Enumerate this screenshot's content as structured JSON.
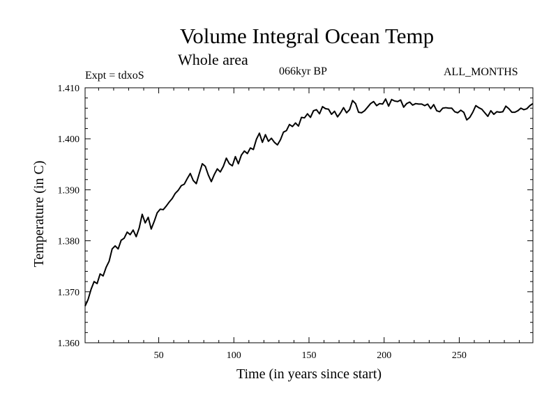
{
  "header": {
    "title": "Volume Integral Ocean Temp",
    "subtitle": "Whole area",
    "experiment": "Expt = tdxoS",
    "period": "066kyr BP",
    "months": "ALL_MONTHS"
  },
  "chart_data": {
    "type": "line",
    "title": "Volume Integral Ocean Temp",
    "subtitle": "Whole area",
    "xlabel": "Time (in years since start)",
    "ylabel": "Temperature (in C)",
    "xlim": [
      1,
      299
    ],
    "ylim": [
      1.36,
      1.41
    ],
    "xticks": [
      50,
      100,
      150,
      200,
      250
    ],
    "xtick_labels": [
      "50",
      "100",
      "150",
      "200",
      "250"
    ],
    "yticks": [
      1.36,
      1.37,
      1.38,
      1.39,
      1.4,
      1.41
    ],
    "ytick_labels": [
      "1.360",
      "1.370",
      "1.380",
      "1.390",
      "1.400",
      "1.410"
    ],
    "grid": false,
    "series": [
      {
        "color": "#000000",
        "x": [
          1,
          3,
          5,
          7,
          9,
          11,
          13,
          15,
          17,
          19,
          21,
          23,
          25,
          27,
          29,
          31,
          33,
          35,
          37,
          39,
          41,
          43,
          45,
          47,
          49,
          51,
          53,
          55,
          57,
          59,
          61,
          63,
          65,
          67,
          69,
          71,
          73,
          75,
          77,
          79,
          81,
          83,
          85,
          87,
          89,
          91,
          93,
          95,
          97,
          99,
          101,
          103,
          105,
          107,
          109,
          111,
          113,
          115,
          117,
          119,
          121,
          123,
          125,
          127,
          129,
          131,
          133,
          135,
          137,
          139,
          141,
          143,
          145,
          147,
          149,
          151,
          153,
          155,
          157,
          159,
          161,
          163,
          165,
          167,
          169,
          171,
          173,
          175,
          177,
          179,
          181,
          183,
          185,
          187,
          189,
          191,
          193,
          195,
          197,
          199,
          201,
          203,
          205,
          207,
          209,
          211,
          213,
          215,
          217,
          219,
          221,
          223,
          225,
          227,
          229,
          231,
          233,
          235,
          237,
          239,
          241,
          243,
          245,
          247,
          249,
          251,
          253,
          255,
          257,
          259,
          261,
          263,
          265,
          267,
          269,
          271,
          273,
          275,
          277,
          279,
          281,
          283,
          285,
          287,
          289,
          291,
          293,
          295,
          297,
          299
        ],
        "y": [
          1.3672,
          1.3685,
          1.3705,
          1.372,
          1.3716,
          1.3735,
          1.3731,
          1.3748,
          1.376,
          1.3784,
          1.379,
          1.3784,
          1.3801,
          1.3805,
          1.3817,
          1.3812,
          1.3821,
          1.3808,
          1.3825,
          1.3852,
          1.3835,
          1.3846,
          1.3823,
          1.3838,
          1.3855,
          1.3862,
          1.3861,
          1.3868,
          1.3876,
          1.3883,
          1.3893,
          1.3899,
          1.3908,
          1.3911,
          1.3922,
          1.3932,
          1.3918,
          1.3912,
          1.3932,
          1.3951,
          1.3946,
          1.3929,
          1.3916,
          1.393,
          1.3941,
          1.3935,
          1.3946,
          1.3962,
          1.3951,
          1.3947,
          1.3965,
          1.3951,
          1.3968,
          1.3976,
          1.3971,
          1.3982,
          1.3979,
          1.3999,
          1.4011,
          1.3993,
          1.4008,
          1.3995,
          1.4001,
          1.3993,
          1.3988,
          1.3998,
          1.4013,
          1.4016,
          1.4028,
          1.4024,
          1.4031,
          1.4025,
          1.4042,
          1.4041,
          1.4049,
          1.4042,
          1.4055,
          1.4057,
          1.4049,
          1.4063,
          1.4059,
          1.4058,
          1.4048,
          1.4054,
          1.4043,
          1.4051,
          1.4061,
          1.4051,
          1.4057,
          1.4075,
          1.4069,
          1.4052,
          1.4051,
          1.4055,
          1.4062,
          1.4069,
          1.4073,
          1.4065,
          1.4069,
          1.4068,
          1.4078,
          1.4064,
          1.4077,
          1.4074,
          1.4073,
          1.4076,
          1.4062,
          1.4069,
          1.4072,
          1.4066,
          1.4069,
          1.4068,
          1.4068,
          1.4065,
          1.4068,
          1.4059,
          1.4067,
          1.4055,
          1.4053,
          1.406,
          1.4061,
          1.406,
          1.406,
          1.4053,
          1.4051,
          1.4056,
          1.4052,
          1.4037,
          1.4042,
          1.4052,
          1.4065,
          1.4061,
          1.4058,
          1.4051,
          1.4044,
          1.4055,
          1.4048,
          1.4053,
          1.4052,
          1.4053,
          1.4064,
          1.4059,
          1.4052,
          1.4052,
          1.4055,
          1.406,
          1.4057,
          1.4059,
          1.4065,
          1.4069
        ]
      }
    ]
  }
}
